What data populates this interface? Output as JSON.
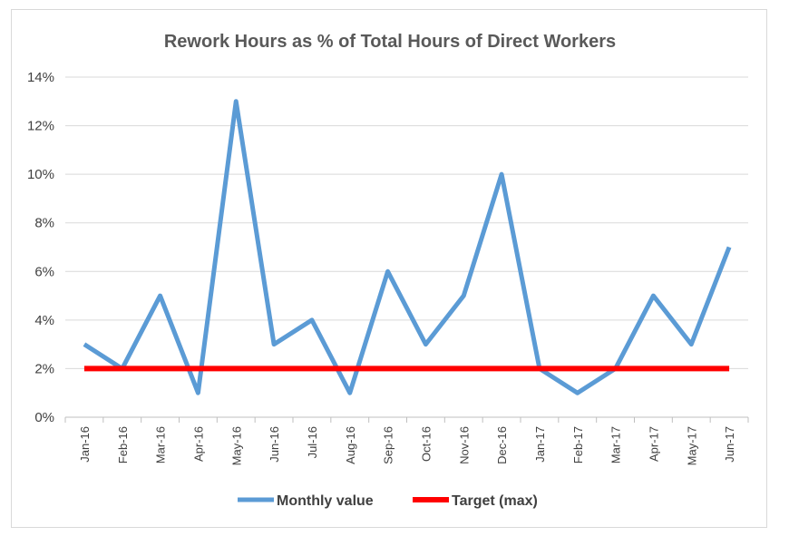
{
  "chart_data": {
    "type": "line",
    "title": "Rework Hours as % of Total Hours of Direct Workers",
    "categories": [
      "Jan-16",
      "Feb-16",
      "Mar-16",
      "Apr-16",
      "May-16",
      "Jun-16",
      "Jul-16",
      "Aug-16",
      "Sep-16",
      "Oct-16",
      "Nov-16",
      "Dec-16",
      "Jan-17",
      "Feb-17",
      "Mar-17",
      "Apr-17",
      "May-17",
      "Jun-17"
    ],
    "series": [
      {
        "name": "Monthly value",
        "color": "#5b9bd5",
        "values": [
          3,
          2,
          5,
          1,
          13,
          3,
          4,
          1,
          6,
          3,
          5,
          10,
          2,
          1,
          2,
          5,
          3,
          7
        ]
      },
      {
        "name": "Target (max)",
        "color": "#ff0000",
        "values": [
          2,
          2,
          2,
          2,
          2,
          2,
          2,
          2,
          2,
          2,
          2,
          2,
          2,
          2,
          2,
          2,
          2,
          2
        ]
      }
    ],
    "yticks": [
      "0%",
      "2%",
      "4%",
      "6%",
      "8%",
      "10%",
      "12%",
      "14%"
    ],
    "ylim": [
      0,
      14
    ],
    "grid": true,
    "legend": "bottom"
  }
}
